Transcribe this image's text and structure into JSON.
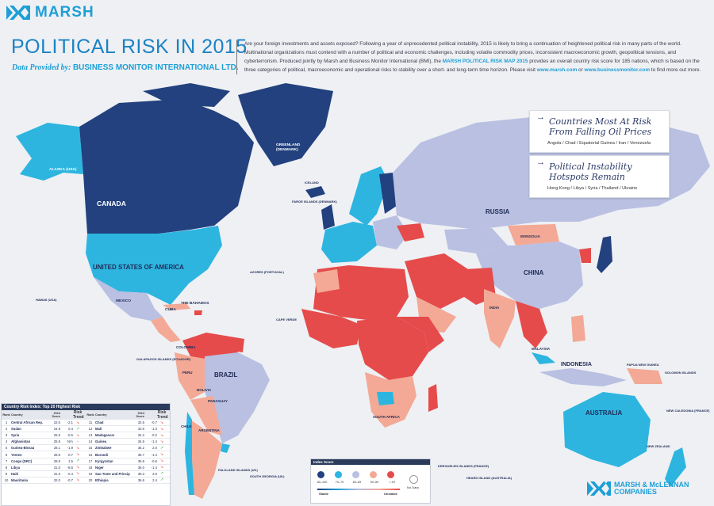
{
  "brand": {
    "name": "MARSH",
    "footer_logo_line1": "MARSH & McLENNAN",
    "footer_logo_line2": "COMPANIES"
  },
  "header": {
    "title": "POLITICAL RISK IN 2015",
    "subtitle_prefix": "Data Provided by:",
    "subtitle_org": "BUSINESS MONITOR INTERNATIONAL LTD.",
    "intro_1": "Are your foreign investments and assets exposed? Following a year of unprecedented political instability, 2015 is likely to bring a continuation of heightened political risk in many parts of the world. Multinational organizations must contend with a number of political and economic challenges, including volatile commodity prices, inconsistent macroeconomic growth, geopolitical tensions, and cyberterrorism. Produced jointly by Marsh and Business Monitor International (BMI), the ",
    "intro_highlight": "MARSH POLITICAL RISK MAP 2015",
    "intro_2": " provides an overall country risk score for 185 nations, which is based on the three categories of political, macroeconomic and operational risks to stability over a short- and long-term time horizon. Please visit ",
    "intro_link1": "www.marsh.com",
    "intro_or": " or ",
    "intro_link2": "www.businessmonitor.com",
    "intro_3": " to find more out more."
  },
  "callouts": [
    {
      "line1": "Countries Most At Risk",
      "line2": "From Falling Oil Prices",
      "countries": "Angola / Chad / Equatorial Guinea / Iran / Venezuela"
    },
    {
      "line1": "Political Instability",
      "line2": "Hotspots Remain",
      "countries": "Hong Kong / Libya / Syria / Thailand / Ukraine"
    }
  ],
  "map_labels": {
    "canada": "CANADA",
    "usa": "UNITED STATES OF AMERICA",
    "alaska": "ALASKA (USA)",
    "greenland1": "GREENLAND",
    "greenland2": "(DENMARK)",
    "russia": "RUSSIA",
    "china": "CHINA",
    "brazil": "BRAZIL",
    "australia": "AUSTRALIA",
    "indonesia": "INDONESIA",
    "mexico": "MEXICO",
    "cuba": "CUBA",
    "bahamas": "THE BAHAMAS",
    "colombia": "COLOMBIA",
    "peru": "PERU",
    "bolivia": "BOLIVIA",
    "chile": "CHILE",
    "argentina": "ARGENTINA",
    "paraguay": "PARAGUAY",
    "mongolia": "MONGOLIA",
    "india": "INDIA",
    "azores": "AZORES (PORTUGAL)",
    "hawaii": "HAWAII (USA)",
    "galapagos": "GALAPAGOS ISLANDS (ECUADOR)",
    "falkland": "FALKLAND ISLANDS (UK)",
    "south_georgia": "SOUTH GEORGIA (UK)",
    "malaysia": "MALAYSIA",
    "cape_verde": "CAPE VERDE",
    "new_zealand": "NEW ZEALAND",
    "papua": "PAPUA NEW GUINEA",
    "solomon": "SOLOMON ISLANDS",
    "faroe": "FAROE ISLANDS (DENMARK)",
    "iceland": "ICELAND",
    "south_africa": "SOUTH AFRICA",
    "kerguelen": "KERGUELEN ISLANDS (FRANCE)",
    "heard": "HEARD ISLAND (AUSTRALIA)",
    "new_caledonia": "NEW CALEDONIA (FRANCE)"
  },
  "table": {
    "title": "Country Risk Index: Top 20 Highest Risk",
    "headers": {
      "rank": "Rank",
      "country": "Country",
      "score": "2014 Score",
      "trend": "Risk Trend"
    },
    "rows": [
      {
        "rank": "1",
        "country": "Central African Rep.",
        "score": "22.6",
        "change": "-2.1",
        "trend": "down"
      },
      {
        "rank": "2",
        "country": "Sudan",
        "score": "24.8",
        "change": "0.4",
        "trend": "up"
      },
      {
        "rank": "3",
        "country": "Syria",
        "score": "25.5",
        "change": "-0.6",
        "trend": "down"
      },
      {
        "rank": "4",
        "country": "Afghanistan",
        "score": "25.8",
        "change": "N/A",
        "trend": "flat"
      },
      {
        "rank": "5",
        "country": "Guinea-Bissau",
        "score": "28.1",
        "change": "-1.9",
        "trend": "down"
      },
      {
        "rank": "6",
        "country": "Yemen",
        "score": "28.8",
        "change": "-0.7",
        "trend": "down"
      },
      {
        "rank": "7",
        "country": "Congo (DRC)",
        "score": "28.9",
        "change": "1.5",
        "trend": "up"
      },
      {
        "rank": "8",
        "country": "Libya",
        "score": "31.0",
        "change": "-8.6",
        "trend": "down"
      },
      {
        "rank": "9",
        "country": "Haiti",
        "score": "31.6",
        "change": "-0.4",
        "trend": "down"
      },
      {
        "rank": "10",
        "country": "Mauritania",
        "score": "32.0",
        "change": "-0.7",
        "trend": "down"
      },
      {
        "rank": "11",
        "country": "Chad",
        "score": "32.6",
        "change": "-0.7",
        "trend": "down"
      },
      {
        "rank": "12",
        "country": "Mali",
        "score": "33.6",
        "change": "-1.3",
        "trend": "down"
      },
      {
        "rank": "13",
        "country": "Madagascar",
        "score": "34.2",
        "change": "-0.2",
        "trend": "down"
      },
      {
        "rank": "14",
        "country": "Guinea",
        "score": "34.6",
        "change": "-1.4",
        "trend": "down"
      },
      {
        "rank": "15",
        "country": "Zimbabwe",
        "score": "35.2",
        "change": "2.0",
        "trend": "up"
      },
      {
        "rank": "16",
        "country": "Burundi",
        "score": "35.7",
        "change": "-1.4",
        "trend": "down"
      },
      {
        "rank": "17",
        "country": "Kyrgyzstan",
        "score": "35.9",
        "change": "-0.6",
        "trend": "down"
      },
      {
        "rank": "18",
        "country": "Niger",
        "score": "36.0",
        "change": "-1.4",
        "trend": "down"
      },
      {
        "rank": "19",
        "country": "Sao Tome and Principe",
        "score": "36.3",
        "change": "3.0",
        "trend": "up"
      },
      {
        "rank": "20",
        "country": "Ethiopia",
        "score": "36.6",
        "change": "2.4",
        "trend": "up"
      }
    ]
  },
  "legend": {
    "title": "Index Score",
    "bands": [
      "80–100",
      "70–79",
      "60–69",
      "50–59",
      "< 49"
    ],
    "stable": "Stable",
    "unstable": "Unstable",
    "no_data": "No Data"
  },
  "colors": {
    "very_low_risk": "#22417e",
    "low_risk": "#2db5e0",
    "moderate_risk": "#b9c0e1",
    "elevated_risk": "#f3a995",
    "high_risk": "#e64b4b",
    "ocean": "#eef0f4",
    "brand_blue": "#1d9fd6"
  }
}
